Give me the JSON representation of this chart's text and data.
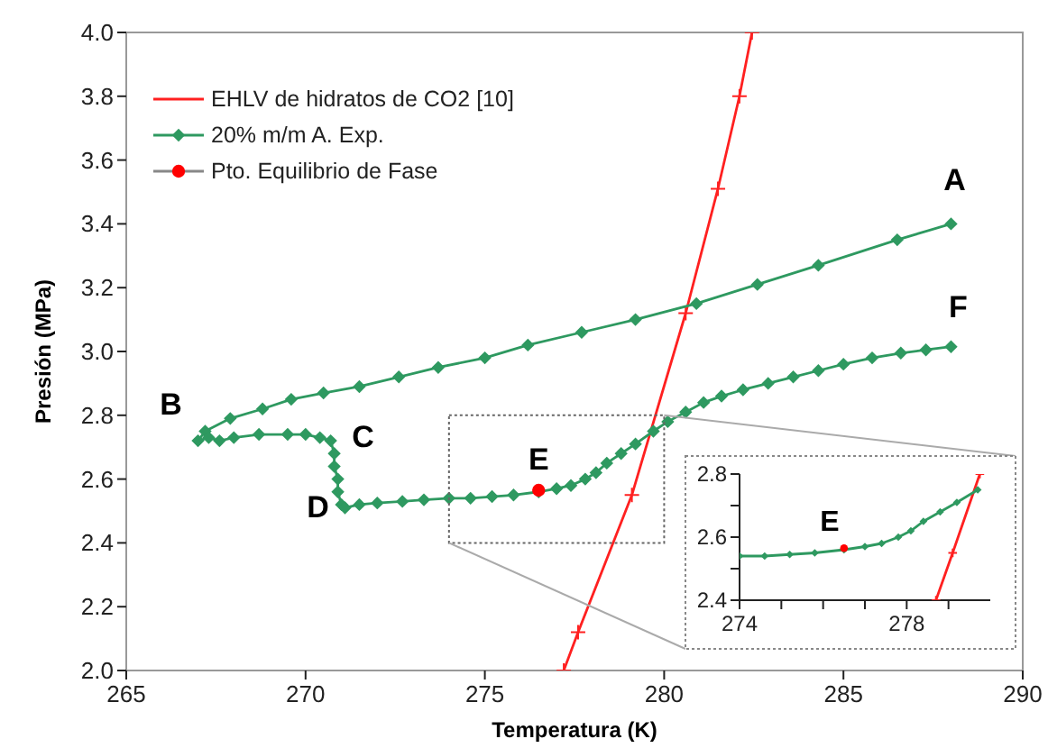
{
  "chart_data": [
    {
      "type": "line",
      "xlabel": "Temperatura (K)",
      "ylabel": "Presión (MPa)",
      "xlim": [
        265,
        290
      ],
      "ylim": [
        2.0,
        4.0
      ],
      "xticks": [
        265,
        270,
        275,
        280,
        285,
        290
      ],
      "yticks": [
        {
          "value": 2.0,
          "label": "2.0"
        },
        {
          "value": 2.2,
          "label": "2.2"
        },
        {
          "value": 2.4,
          "label": "2.4"
        },
        {
          "value": 2.6,
          "label": "2.6"
        },
        {
          "value": 2.8,
          "label": "2.8"
        },
        {
          "value": 3.0,
          "label": "3.0"
        },
        {
          "value": 3.2,
          "label": "3.2"
        },
        {
          "value": 3.4,
          "label": "3.4"
        },
        {
          "value": 3.6,
          "label": "3.6"
        },
        {
          "value": 3.8,
          "label": "3.8"
        },
        {
          "value": 4.0,
          "label": "4.0"
        }
      ],
      "legend": "top left",
      "grid": false,
      "series": [
        {
          "name": "EHLV de hidratos de CO2 [10]",
          "color": "#ff2020",
          "marker": "cross",
          "x": [
            277.2,
            277.6,
            279.1,
            280.6,
            281.5,
            282.1,
            282.45
          ],
          "values": [
            2.0,
            2.12,
            2.55,
            3.12,
            3.51,
            3.8,
            4.0
          ]
        },
        {
          "name": "20% m/m A. Exp.",
          "color": "#2e9960",
          "marker": "diamond",
          "x": [
            288,
            286.5,
            284.3,
            282.6,
            280.9,
            279.2,
            277.7,
            276.2,
            275,
            273.7,
            272.6,
            271.5,
            270.5,
            269.6,
            268.8,
            267.9,
            267.2,
            267,
            267.3,
            267.6,
            268,
            268.7,
            269.5,
            270,
            270.4,
            270.7,
            270.8,
            270.8,
            270.9,
            270.9,
            271,
            271.1,
            271.5,
            272,
            272.7,
            273.3,
            274,
            274.6,
            275.2,
            275.8,
            276.5,
            277,
            277.4,
            277.8,
            278.1,
            278.4,
            278.8,
            279.2,
            279.7,
            280.1,
            280.6,
            281.1,
            281.6,
            282.2,
            282.9,
            283.6,
            284.3,
            285,
            285.8,
            286.6,
            287.3,
            288
          ],
          "values": [
            3.4,
            3.35,
            3.27,
            3.21,
            3.15,
            3.1,
            3.06,
            3.02,
            2.98,
            2.95,
            2.92,
            2.89,
            2.87,
            2.85,
            2.82,
            2.79,
            2.75,
            2.72,
            2.73,
            2.72,
            2.73,
            2.74,
            2.74,
            2.74,
            2.73,
            2.72,
            2.68,
            2.64,
            2.6,
            2.56,
            2.52,
            2.51,
            2.52,
            2.525,
            2.53,
            2.535,
            2.54,
            2.54,
            2.545,
            2.55,
            2.56,
            2.57,
            2.58,
            2.6,
            2.62,
            2.65,
            2.68,
            2.71,
            2.75,
            2.78,
            2.81,
            2.84,
            2.86,
            2.88,
            2.9,
            2.92,
            2.94,
            2.96,
            2.98,
            2.995,
            3.005,
            3.015
          ]
        },
        {
          "name": "Pto. Equilibrio de Fase",
          "type": "scatter",
          "color": "#ff0000",
          "marker": "circle",
          "x": [
            276.5
          ],
          "values": [
            2.565
          ]
        }
      ],
      "annotations": [
        {
          "text": "A",
          "x": 288,
          "y": 3.4
        },
        {
          "text": "B",
          "x": 267,
          "y": 2.72
        },
        {
          "text": "C",
          "x": 270.7,
          "y": 2.72
        },
        {
          "text": "D",
          "x": 271.1,
          "y": 2.51
        },
        {
          "text": "E",
          "x": 276.5,
          "y": 2.565
        },
        {
          "text": "F",
          "x": 288,
          "y": 3.015
        }
      ]
    },
    {
      "type": "line",
      "xlim": [
        274,
        280
      ],
      "ylim": [
        2.4,
        2.8
      ],
      "xticks": [
        274,
        {
          "value": 275,
          "label": null
        },
        {
          "value": 276,
          "label": null
        },
        {
          "value": 277,
          "label": null
        },
        278,
        {
          "value": 279,
          "label": null
        }
      ],
      "yticks": [
        {
          "value": 2.4,
          "label": "2.4"
        },
        {
          "value": 2.5,
          "label": null
        },
        {
          "value": 2.6,
          "label": "2.6"
        },
        {
          "value": 2.7,
          "label": null
        },
        {
          "value": 2.8,
          "label": "2.8"
        }
      ],
      "legend": false,
      "grid": false,
      "series": [
        {
          "color": "#ff2020",
          "marker": "cross",
          "x": [
            278.7,
            279.1,
            279.75
          ],
          "values": [
            2.4,
            2.55,
            2.8
          ]
        },
        {
          "color": "#2e9960",
          "marker": "diamond",
          "x": [
            274,
            274.6,
            275.2,
            275.8,
            276.5,
            277,
            277.4,
            277.8,
            278.1,
            278.4,
            278.8,
            279.2,
            279.7
          ],
          "values": [
            2.54,
            2.54,
            2.545,
            2.55,
            2.56,
            2.57,
            2.58,
            2.6,
            2.62,
            2.65,
            2.68,
            2.71,
            2.75
          ]
        },
        {
          "type": "scatter",
          "color": "#ff0000",
          "marker": "circle",
          "x": [
            276.5
          ],
          "values": [
            2.565
          ]
        }
      ],
      "annotations": [
        {
          "text": "E",
          "x": 276.5,
          "y": 2.565
        }
      ]
    }
  ]
}
